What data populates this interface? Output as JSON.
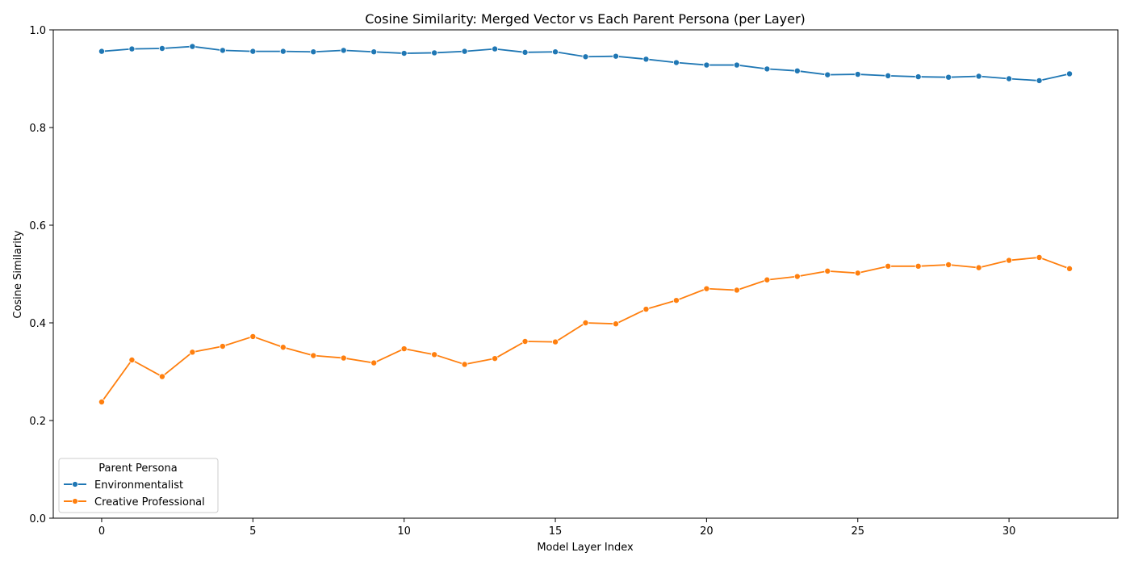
{
  "chart_data": {
    "type": "line",
    "title": "Cosine Similarity: Merged Vector vs Each Parent Persona (per Layer)",
    "xlabel": "Model Layer Index",
    "ylabel": "Cosine Similarity",
    "xlim": [
      -1.6,
      33.6
    ],
    "ylim": [
      0.0,
      1.0
    ],
    "xticks": [
      0,
      5,
      10,
      15,
      20,
      25,
      30
    ],
    "yticks": [
      0.0,
      0.2,
      0.4,
      0.6,
      0.8,
      1.0
    ],
    "xtick_labels": [
      "0",
      "5",
      "10",
      "15",
      "20",
      "25",
      "30"
    ],
    "ytick_labels": [
      "0.0",
      "0.2",
      "0.4",
      "0.6",
      "0.8",
      "1.0"
    ],
    "grid": false,
    "legend": {
      "title": "Parent Persona",
      "placement": "lower-left"
    },
    "x": [
      0,
      1,
      2,
      3,
      4,
      5,
      6,
      7,
      8,
      9,
      10,
      11,
      12,
      13,
      14,
      15,
      16,
      17,
      18,
      19,
      20,
      21,
      22,
      23,
      24,
      25,
      26,
      27,
      28,
      29,
      30,
      31,
      32
    ],
    "series": [
      {
        "name": "Environmentalist",
        "color": "#1f77b4",
        "values": [
          0.956,
          0.961,
          0.962,
          0.966,
          0.958,
          0.956,
          0.956,
          0.955,
          0.958,
          0.955,
          0.952,
          0.953,
          0.956,
          0.961,
          0.954,
          0.955,
          0.945,
          0.946,
          0.94,
          0.933,
          0.928,
          0.928,
          0.92,
          0.916,
          0.908,
          0.909,
          0.906,
          0.904,
          0.903,
          0.905,
          0.9,
          0.896,
          0.91
        ]
      },
      {
        "name": "Creative Professional",
        "color": "#ff7f0e",
        "values": [
          0.238,
          0.324,
          0.29,
          0.34,
          0.352,
          0.372,
          0.35,
          0.333,
          0.328,
          0.318,
          0.347,
          0.335,
          0.315,
          0.327,
          0.362,
          0.361,
          0.4,
          0.398,
          0.428,
          0.446,
          0.47,
          0.467,
          0.488,
          0.495,
          0.506,
          0.502,
          0.516,
          0.516,
          0.519,
          0.513,
          0.528,
          0.534,
          0.511
        ]
      }
    ]
  }
}
